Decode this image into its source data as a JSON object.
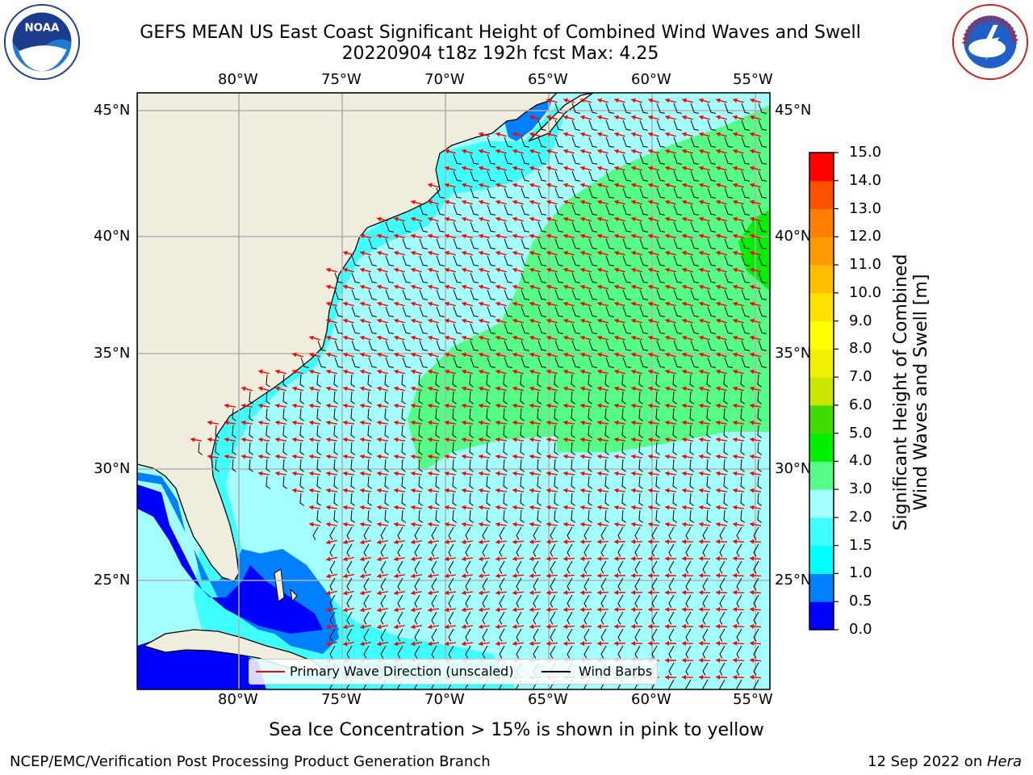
{
  "header": {
    "title_line1": "GEFS MEAN US East Coast Significant Height of Combined Wind Waves and Swell",
    "title_line2": "20220904 t18z 192h fcst   Max: 4.25"
  },
  "logos": {
    "left": {
      "name": "noaa-logo",
      "text": "NOAA"
    },
    "right": {
      "name": "nws-logo",
      "text": "NATIONAL WEATHER SERVICE"
    }
  },
  "map": {
    "lon_labels": [
      "80°W",
      "75°W",
      "70°W",
      "65°W",
      "60°W",
      "55°W"
    ],
    "lat_labels": [
      "45°N",
      "40°N",
      "35°N",
      "30°N",
      "25°N"
    ],
    "land_color": "#efedde",
    "ocean_color": "#a5fefe",
    "legend": {
      "wave_label": "Primary Wave Direction (unscaled)",
      "wave_color": "#ff0000",
      "barb_label": "Wind Barbs",
      "barb_color": "#000000"
    }
  },
  "colorbar": {
    "title_line1": "Significant Height of Combined",
    "title_line2": "Wind Waves and Swell [m]",
    "tick_labels": [
      "0.0",
      "0.5",
      "1.0",
      "1.5",
      "2.0",
      "3.0",
      "4.0",
      "5.0",
      "6.0",
      "7.0",
      "8.0",
      "9.0",
      "10.0",
      "11.0",
      "12.0",
      "13.0",
      "14.0",
      "15.0"
    ],
    "colors": [
      "#0000ff",
      "#0080ff",
      "#00ffff",
      "#40ffff",
      "#a5ffff",
      "#55fd86",
      "#00f000",
      "#40dc00",
      "#c8e600",
      "#f0f000",
      "#ffff00",
      "#ffe000",
      "#ffbf00",
      "#ff9b00",
      "#ff7f00",
      "#ff4f00",
      "#ff0000"
    ]
  },
  "footer": {
    "sea_ice_note": "Sea Ice Concentration > 15% is shown in pink to yellow",
    "credit_left": "NCEP/EMC/Verification Post Processing Product Generation Branch",
    "credit_right_date": "12 Sep 2022 on ",
    "credit_right_machine": "Hera"
  }
}
